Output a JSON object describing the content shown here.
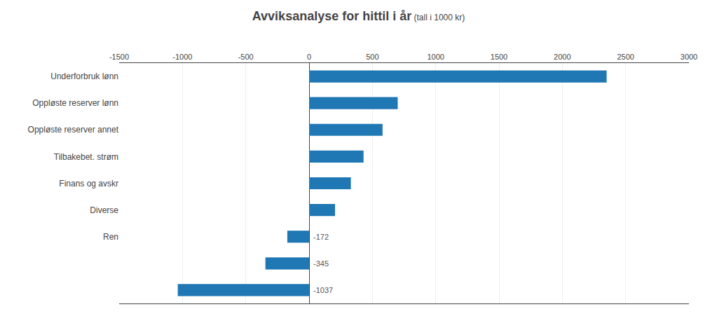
{
  "chart_data": {
    "type": "bar",
    "orientation": "horizontal",
    "title": "Avviksanalyse for hittil i år",
    "subtitle": " (tall i 1000 kr)",
    "categories": [
      "Underforbruk lønn",
      "Oppløste reserver lønn",
      "Oppløste reserver annet",
      "Tilbakebet. strøm",
      "Finans og avskr",
      "Diverse",
      "Ren",
      null,
      null
    ],
    "values": [
      2350,
      700,
      580,
      430,
      330,
      205,
      -172,
      -345,
      -1037
    ],
    "value_labels": [
      null,
      null,
      null,
      null,
      null,
      null,
      "-172",
      "-345",
      "-1037"
    ],
    "xlim": [
      -1500,
      3000
    ],
    "xticks": [
      -1500,
      -1000,
      -500,
      0,
      500,
      1000,
      1500,
      2000,
      2500,
      3000
    ],
    "grid": true
  }
}
